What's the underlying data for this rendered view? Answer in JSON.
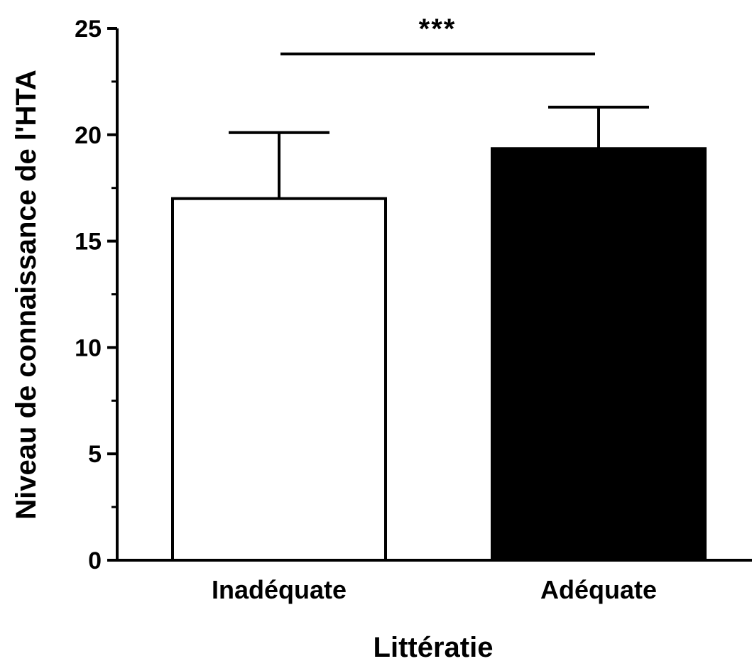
{
  "chart_data": {
    "type": "bar",
    "categories": [
      "Inadéquate",
      "Adéquate"
    ],
    "values": [
      17.0,
      19.35
    ],
    "error_upper": [
      20.1,
      21.3
    ],
    "bar_colors": [
      "#ffffff",
      "#000000"
    ],
    "bar_edge_color": "#000000",
    "title": "",
    "xlabel": "Littératie",
    "ylabel": "Niveau de connaissance de l'HTA",
    "ylim": [
      0,
      25
    ],
    "yticks": [
      "0",
      "5",
      "10",
      "15",
      "20",
      "25"
    ],
    "y_minor_ticks": true,
    "grid": false,
    "legend": "none",
    "significance": {
      "label": "***",
      "between": [
        "Inadéquate",
        "Adéquate"
      ],
      "y": 23.8
    }
  }
}
